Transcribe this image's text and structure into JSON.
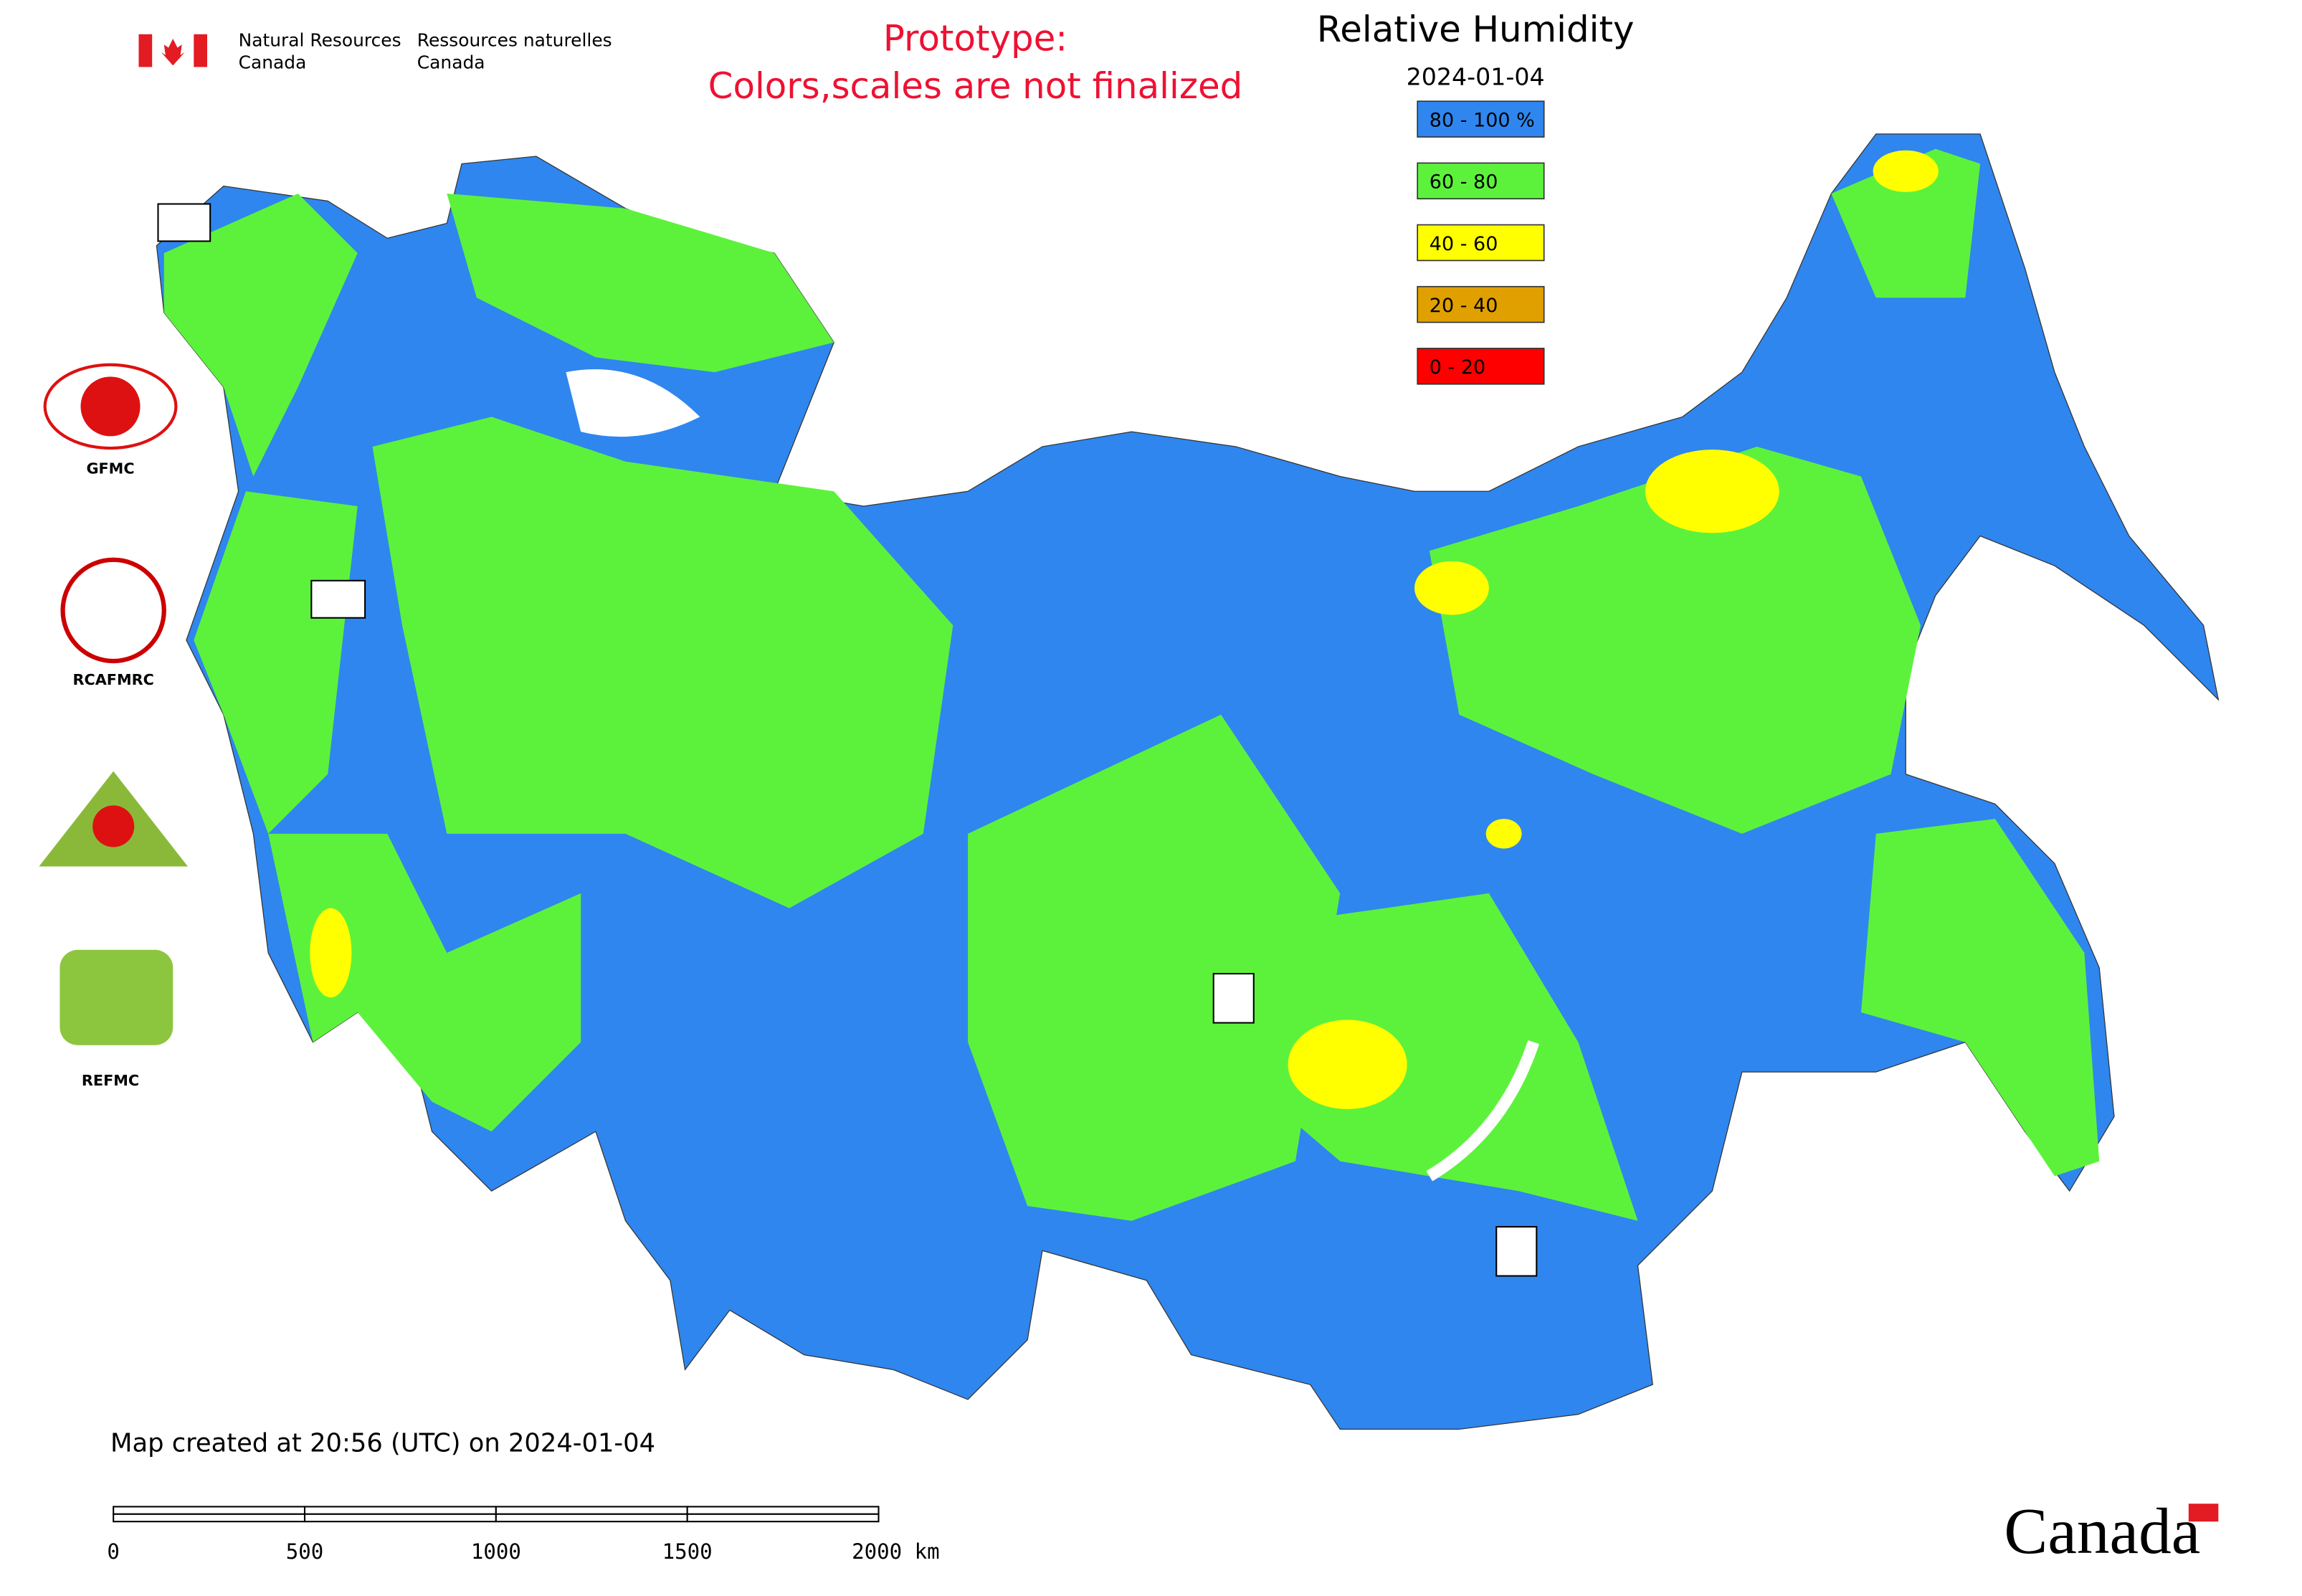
{
  "header": {
    "org_en": [
      "Natural Resources",
      "Canada"
    ],
    "org_fr": [
      "Ressources naturelles",
      "Canada"
    ]
  },
  "notice": [
    "Prototype:",
    "Colors,scales are not finalized"
  ],
  "legend": {
    "title": "Relative Humidity",
    "date": "2024-01-04",
    "items": [
      {
        "label": "80 - 100 %",
        "color": "#2f86ee"
      },
      {
        "label": "60 - 80",
        "color": "#5cf23c"
      },
      {
        "label": "40 - 60",
        "color": "#ffff00"
      },
      {
        "label": "20 - 40",
        "color": "#e0a000"
      },
      {
        "label": "0 - 20",
        "color": "#ff0000"
      }
    ]
  },
  "logos": [
    "GFMC",
    "RCAFMRC",
    "REFMC"
  ],
  "footer": "Map created at 20:56 (UTC) on 2024-01-04",
  "scale_bar": [
    "0",
    "500",
    "1000",
    "1500",
    "2000 km"
  ],
  "wordmark": "Canada"
}
